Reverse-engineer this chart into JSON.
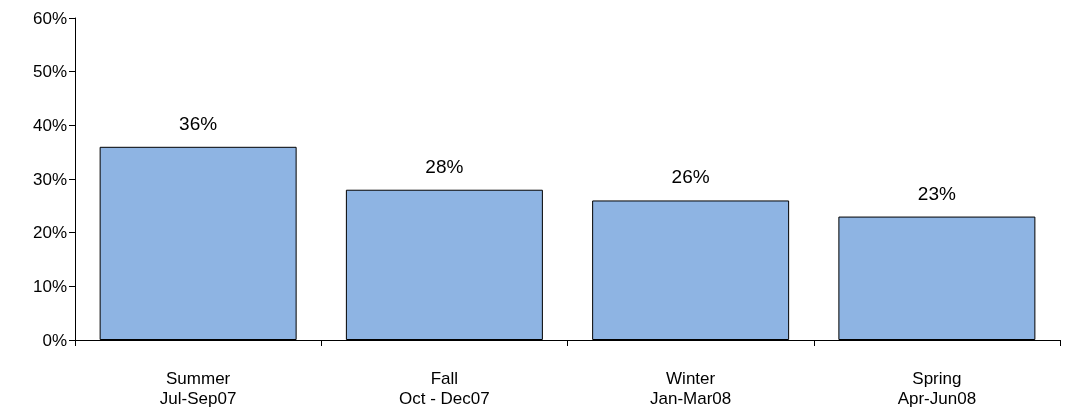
{
  "chart_data": {
    "type": "bar",
    "categories": [
      "Summer\nJul-Sep07",
      "Fall\nOct - Dec07",
      "Winter\nJan-Mar08",
      "Spring\nApr-Jun08"
    ],
    "values": [
      36,
      28,
      26,
      23
    ],
    "color": "#8eb4e3",
    "value_labels": [
      "36%",
      "28%",
      "26%",
      "23%"
    ],
    "ylim": [
      0,
      60
    ],
    "yticks": [
      {
        "value": 0,
        "label": "0%"
      },
      {
        "value": 10,
        "label": "10%"
      },
      {
        "value": 20,
        "label": "20%"
      },
      {
        "value": 30,
        "label": "30%"
      },
      {
        "value": 40,
        "label": "40%"
      },
      {
        "value": 50,
        "label": "50%"
      },
      {
        "value": 60,
        "label": "60%"
      }
    ],
    "grid": false
  }
}
